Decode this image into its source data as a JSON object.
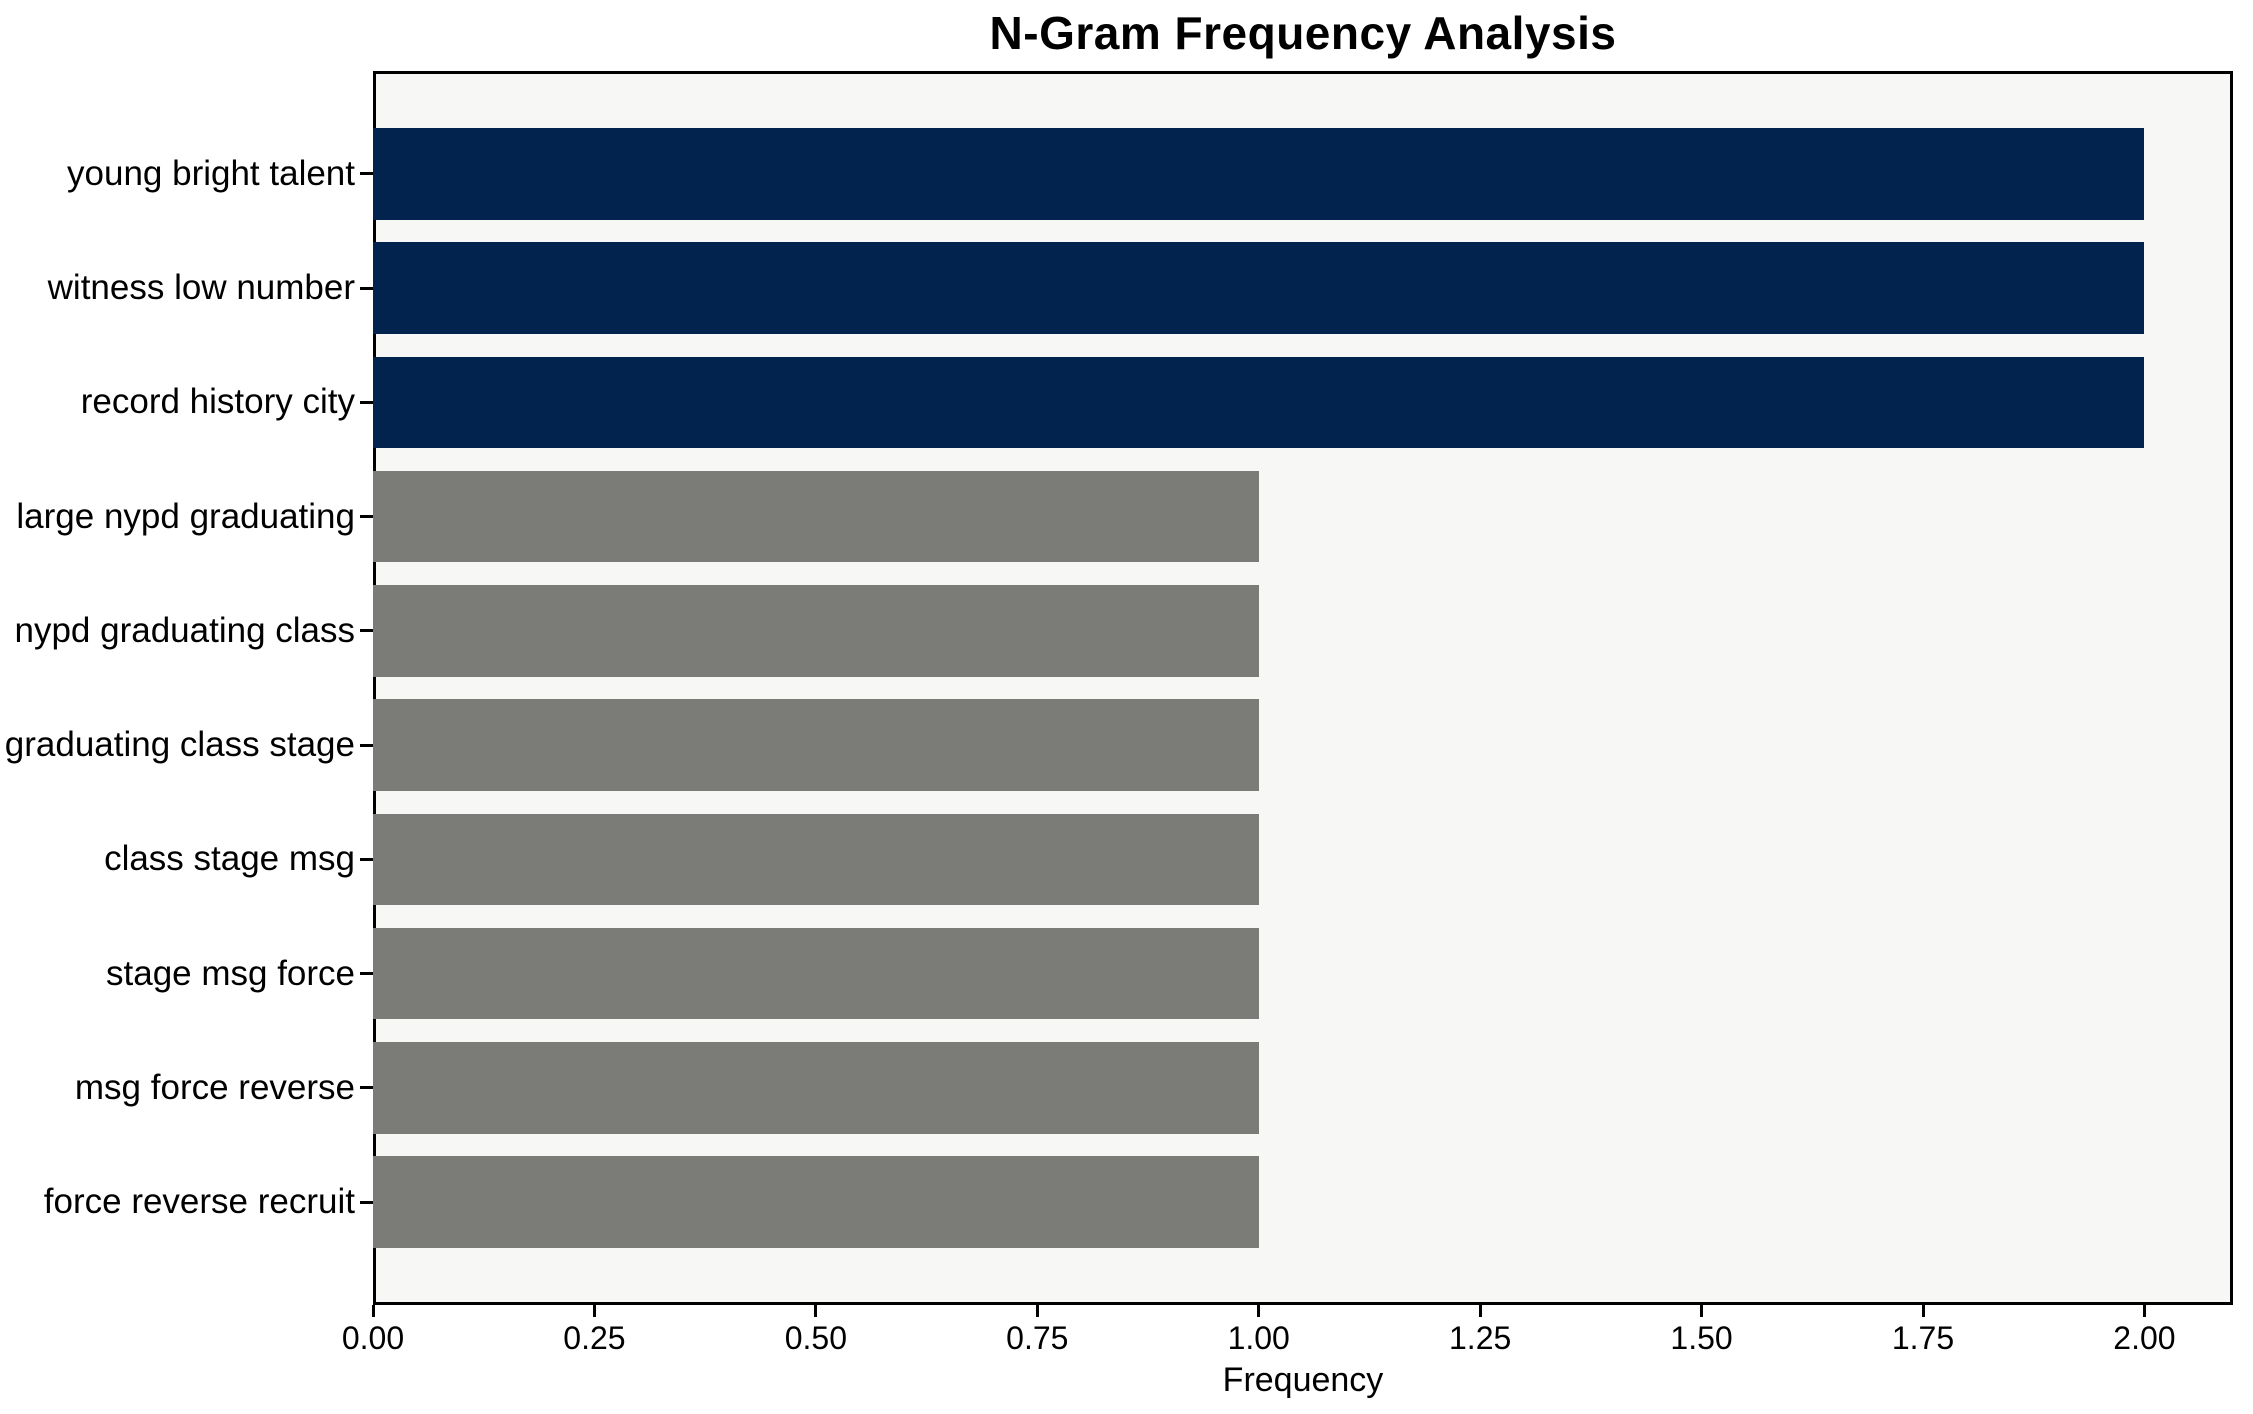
{
  "chart_data": {
    "type": "bar",
    "orientation": "horizontal",
    "title": "N-Gram Frequency Analysis",
    "xlabel": "Frequency",
    "ylabel": "",
    "categories": [
      "young bright talent",
      "witness low number",
      "record history city",
      "large nypd graduating",
      "nypd graduating class",
      "graduating class stage",
      "class stage msg",
      "stage msg force",
      "msg force reverse",
      "force reverse recruit"
    ],
    "values": [
      2,
      2,
      2,
      1,
      1,
      1,
      1,
      1,
      1,
      1
    ],
    "bar_colors": [
      "#02234d",
      "#02234d",
      "#02234d",
      "#7b7b78",
      "#7b7b78",
      "#7b7b78",
      "#7b7b78",
      "#7b7b78",
      "#7b7b78",
      "#7b7b78"
    ],
    "xlim": [
      0,
      2.1
    ],
    "xticks": [
      {
        "value": 0.0,
        "label": "0.00"
      },
      {
        "value": 0.25,
        "label": "0.25"
      },
      {
        "value": 0.5,
        "label": "0.50"
      },
      {
        "value": 0.75,
        "label": "0.75"
      },
      {
        "value": 1.0,
        "label": "1.00"
      },
      {
        "value": 1.25,
        "label": "1.25"
      },
      {
        "value": 1.5,
        "label": "1.50"
      },
      {
        "value": 1.75,
        "label": "1.75"
      },
      {
        "value": 2.0,
        "label": "2.00"
      }
    ],
    "grid": false,
    "legend": null,
    "colors": {
      "highlight_bar": "#02234d",
      "default_bar": "#7b7b78",
      "plot_background": "#f7f7f6",
      "figure_background": "#ffffff",
      "axis": "#000000",
      "text": "#000000"
    }
  }
}
